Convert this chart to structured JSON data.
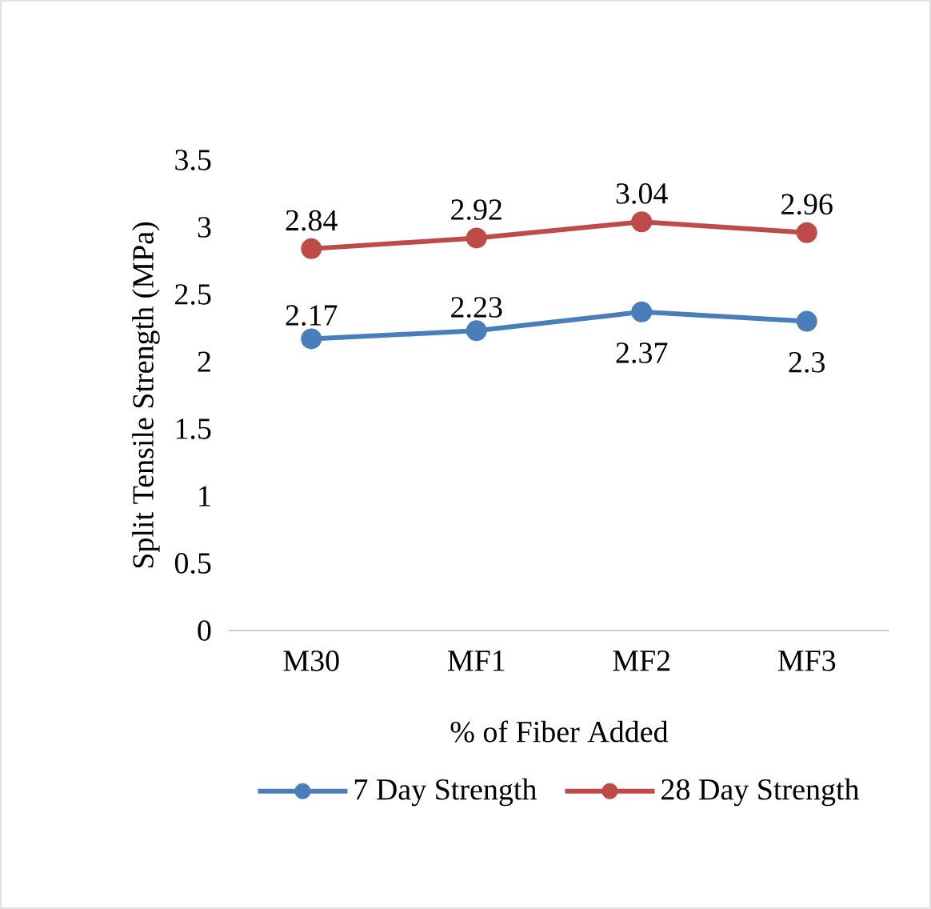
{
  "chart_data": {
    "type": "line",
    "xlabel": "% of Fiber Added",
    "ylabel": "Split Tensile Strength (MPa)",
    "categories": [
      "M30",
      "MF1",
      "MF2",
      "MF3"
    ],
    "series": [
      {
        "name": "7 Day Strength",
        "color": "#4a7ebb",
        "values": [
          2.17,
          2.23,
          2.37,
          2.3
        ]
      },
      {
        "name": "28 Day Strength",
        "color": "#be4b48",
        "values": [
          2.84,
          2.92,
          3.04,
          2.96
        ]
      }
    ],
    "ylim": [
      0,
      3.5
    ],
    "yticks": [
      0,
      0.5,
      1,
      1.5,
      2,
      2.5,
      3,
      3.5
    ],
    "data_labels": true,
    "grid": false,
    "legend": "bottom",
    "marker": "circle",
    "line_style": "solid"
  }
}
